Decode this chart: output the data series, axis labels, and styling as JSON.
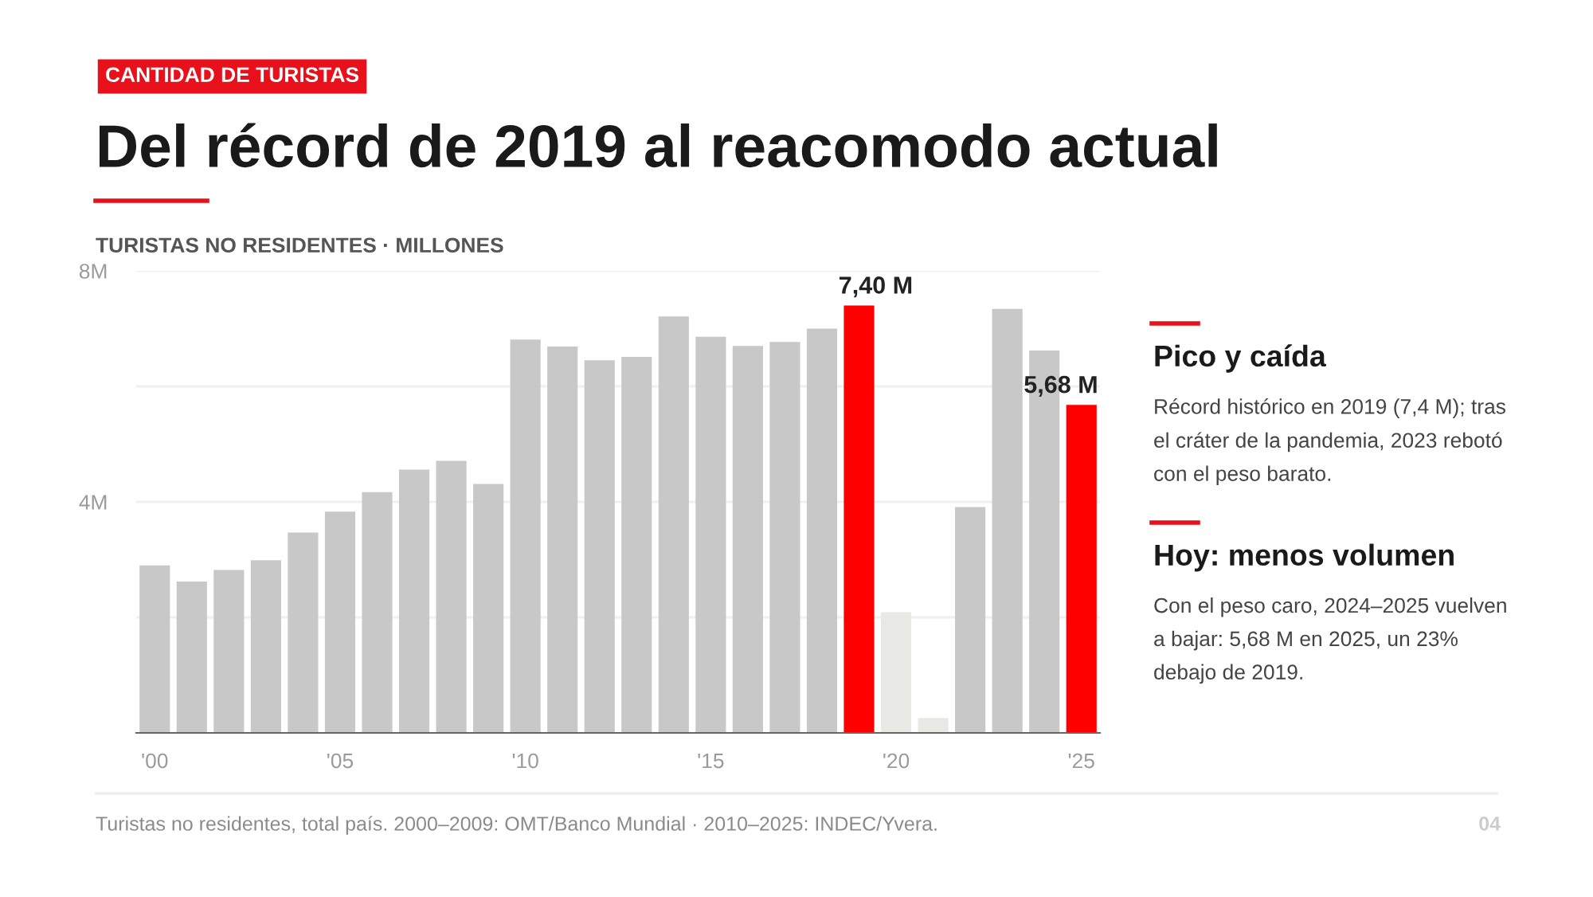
{
  "chart_data": {
    "type": "bar",
    "subtitle": "CANTIDAD DE TURISTAS",
    "title": "Del récord de 2019 al reacomodo actual",
    "ylabel": "TURISTAS NO RESIDENTES · MILLONES",
    "categories": [
      "'00",
      null,
      null,
      null,
      null,
      "'05",
      null,
      null,
      null,
      null,
      "'10",
      null,
      null,
      null,
      null,
      "'15",
      null,
      null,
      null,
      null,
      "'20",
      null,
      null,
      null,
      null,
      "'25"
    ],
    "values": [
      2.9,
      2.62,
      2.82,
      2.99,
      3.47,
      3.83,
      4.17,
      4.56,
      4.71,
      4.31,
      6.81,
      6.69,
      6.45,
      6.51,
      7.21,
      6.86,
      6.7,
      6.77,
      7.0,
      7.4,
      2.09,
      0.26,
      3.91,
      7.34,
      6.62,
      5.68
    ],
    "colors": [
      "#c8c8c8",
      "#c8c8c8",
      "#c8c8c8",
      "#c8c8c8",
      "#c8c8c8",
      "#c8c8c8",
      "#c8c8c8",
      "#c8c8c8",
      "#c8c8c8",
      "#c8c8c8",
      "#c8c8c8",
      "#c8c8c8",
      "#c8c8c8",
      "#c8c8c8",
      "#c8c8c8",
      "#c8c8c8",
      "#c8c8c8",
      "#c8c8c8",
      "#c8c8c8",
      "#ff0000",
      "#e8e8e4",
      "#e8e8e4",
      "#c8c8c8",
      "#c8c8c8",
      "#c8c8c8",
      "#ff0000"
    ],
    "value_labels": [
      null,
      null,
      null,
      null,
      null,
      null,
      null,
      null,
      null,
      null,
      null,
      null,
      null,
      null,
      null,
      null,
      null,
      null,
      null,
      "7,40 M",
      null,
      null,
      null,
      null,
      null,
      "5,68 M"
    ],
    "ylim": [
      0,
      8
    ],
    "yticks": [
      {
        "value": 2,
        "label": null
      },
      {
        "value": 4,
        "label": "4M"
      },
      {
        "value": 6,
        "label": null
      },
      {
        "value": 8,
        "label": "8M"
      }
    ],
    "grid": "y",
    "annotations": [
      "Pico y caída",
      "Récord histórico en 2019 (7,4 M); tras el cráter de la pandemia, 2023 rebotó con el peso barato.",
      "Hoy: menos volumen",
      "Con el peso caro, 2024–2025 vuelven a bajar: 5,68 M en 2025, un 23% debajo de 2019.",
      "Turistas no residentes, total país. 2000–2009: OMT/Banco Mundial · 2010–2025: INDEC/Yvera.",
      "04"
    ]
  }
}
